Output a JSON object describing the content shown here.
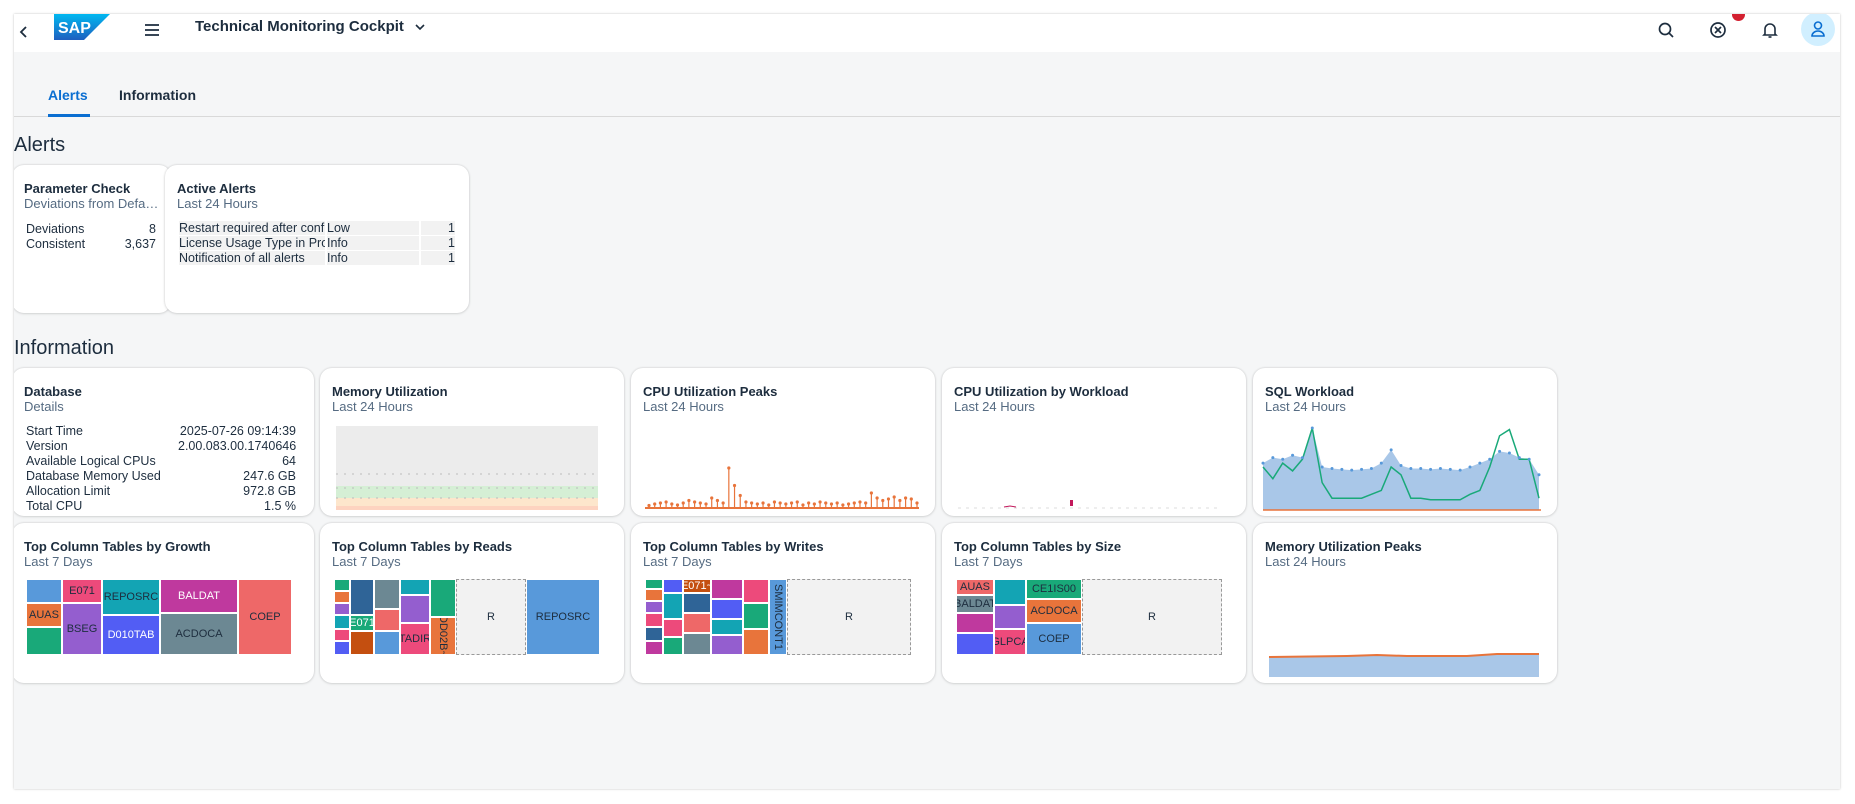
{
  "shell": {
    "app_title": "Technical Monitoring Cockpit",
    "icons": [
      "back-icon",
      "sap-logo",
      "menu-icon",
      "chevron-down-icon",
      "search-icon",
      "close-circle-icon",
      "bell-icon",
      "user-icon"
    ],
    "brand_color": "#0a6ed1"
  },
  "tabs": [
    {
      "label": "Alerts",
      "active": true
    },
    {
      "label": "Information",
      "active": false
    }
  ],
  "sections": {
    "alerts": "Alerts",
    "information": "Information"
  },
  "parameter_check": {
    "title": "Parameter Check",
    "subtitle": "Deviations from Defa…",
    "rows": [
      {
        "label": "Deviations",
        "value": "8"
      },
      {
        "label": "Consistent",
        "value": "3,637"
      }
    ]
  },
  "active_alerts": {
    "title": "Active Alerts",
    "subtitle": "Last 24 Hours",
    "rows": [
      {
        "name": "Restart required after config",
        "severity": "Low",
        "count": "1"
      },
      {
        "name": "License Usage Type in Prod",
        "severity": "Info",
        "count": "1"
      },
      {
        "name": "Notification of all alerts",
        "severity": "Info",
        "count": "1"
      }
    ]
  },
  "database": {
    "title": "Database",
    "subtitle": "Details",
    "rows": [
      {
        "label": "Start Time",
        "value": "2025-07-26 09:14:39"
      },
      {
        "label": "Version",
        "value": "2.00.083.00.1740646"
      },
      {
        "label": "Available Logical CPUs",
        "value": "64"
      },
      {
        "label": "Database Memory Used",
        "value": "247.6 GB"
      },
      {
        "label": "Allocation Limit",
        "value": "972.8 GB"
      },
      {
        "label": "Total CPU",
        "value": "1.5 %"
      }
    ]
  },
  "tiles_row1": [
    {
      "title": "Memory Utilization",
      "subtitle": "Last 24 Hours"
    },
    {
      "title": "CPU Utilization Peaks",
      "subtitle": "Last 24 Hours"
    },
    {
      "title": "CPU Utilization by Workload",
      "subtitle": "Last 24 Hours"
    },
    {
      "title": "SQL Workload",
      "subtitle": "Last 24 Hours"
    }
  ],
  "tiles_row2": [
    {
      "title": "Top Column Tables by Growth",
      "subtitle": "Last 7 Days"
    },
    {
      "title": "Top Column Tables by Reads",
      "subtitle": "Last 7 Days"
    },
    {
      "title": "Top Column Tables by Writes",
      "subtitle": "Last 7 Days"
    },
    {
      "title": "Top Column Tables by Size",
      "subtitle": "Last 7 Days"
    },
    {
      "title": "Memory Utilization Peaks",
      "subtitle": "Last 24 Hours"
    }
  ],
  "treemap_labels": {
    "growth": [
      "E071",
      "AUAS",
      "BSEG",
      "REPOSRC",
      "D010TAB",
      "BALDAT",
      "ACDOCA",
      "COEP"
    ],
    "reads": [
      "E071",
      "TADIR",
      "DD02B~",
      "R",
      "REPOSRC"
    ],
    "writes": [
      "E071~",
      "SMIMCONT1",
      "R"
    ],
    "size": [
      "AUAS",
      "BALDAT",
      "GLPCA",
      "CE1IS00",
      "ACDOCA",
      "COEP",
      "R"
    ]
  },
  "sql_workload_series": {
    "area": [
      0.55,
      0.62,
      0.6,
      0.65,
      0.62,
      1.0,
      0.5,
      0.48,
      0.47,
      0.46,
      0.47,
      0.48,
      0.55,
      0.72,
      0.52,
      0.48,
      0.48,
      0.47,
      0.48,
      0.47,
      0.46,
      0.5,
      0.55,
      0.6,
      0.7,
      0.68,
      0.62,
      0.6,
      0.4
    ],
    "line": [
      0.5,
      0.35,
      0.55,
      0.45,
      0.6,
      1.0,
      0.3,
      0.1,
      0.1,
      0.1,
      0.1,
      0.15,
      0.2,
      0.5,
      0.4,
      0.1,
      0.1,
      0.08,
      0.08,
      0.08,
      0.08,
      0.15,
      0.2,
      0.5,
      0.9,
      0.98,
      0.6,
      0.6,
      0.1
    ]
  },
  "cpu_peaks_series": [
    0.05,
    0.08,
    0.1,
    0.12,
    0.08,
    0.06,
    0.1,
    0.15,
    0.12,
    0.1,
    0.08,
    0.2,
    0.15,
    0.1,
    0.8,
    0.45,
    0.25,
    0.12,
    0.1,
    0.08,
    0.1,
    0.06,
    0.12,
    0.1,
    0.08,
    0.1,
    0.12,
    0.06,
    0.1,
    0.08,
    0.12,
    0.1,
    0.08,
    0.1,
    0.06,
    0.08,
    0.1,
    0.12,
    0.1,
    0.3,
    0.2,
    0.15,
    0.18,
    0.22,
    0.15,
    0.2,
    0.18,
    0.1
  ]
}
